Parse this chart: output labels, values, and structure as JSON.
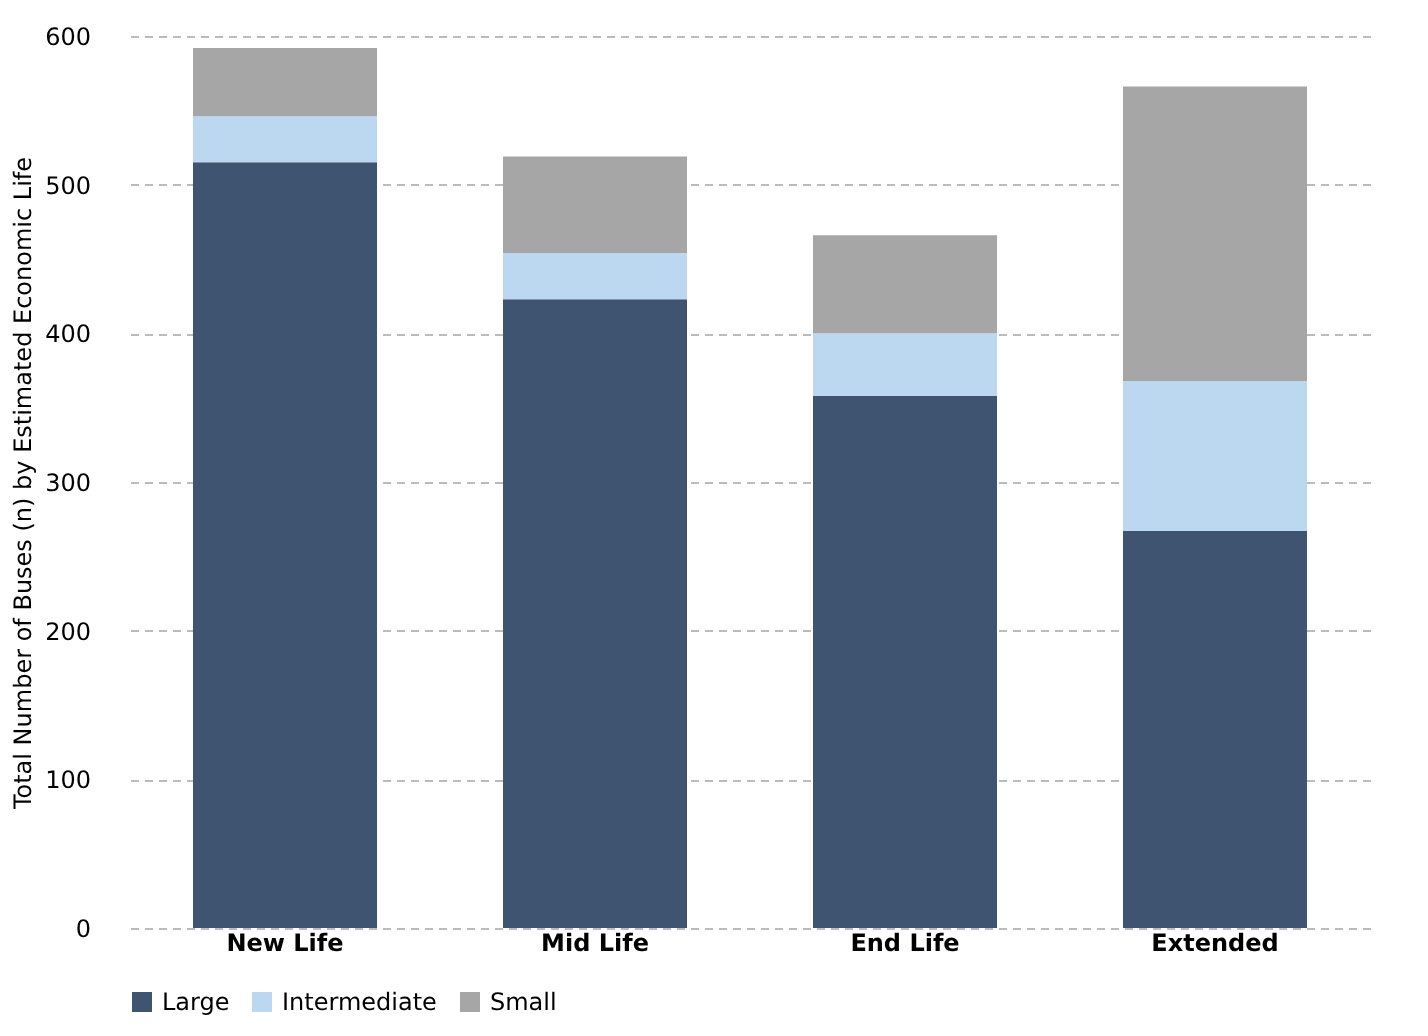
{
  "chart_data": {
    "type": "bar",
    "stacked": true,
    "ylabel": "Total Number of Buses (n) by Estimated Economic Life",
    "categories": [
      "New Life",
      "Mid Life",
      "End Life",
      "Extended"
    ],
    "series": [
      {
        "name": "Large",
        "color": "#3f5470",
        "values": [
          515,
          423,
          358,
          267
        ]
      },
      {
        "name": "Intermediate",
        "color": "#bcd7f0",
        "values": [
          31,
          31,
          42,
          101
        ]
      },
      {
        "name": "Small",
        "color": "#a6a6a6",
        "values": [
          46,
          65,
          66,
          198
        ]
      }
    ],
    "ylim": [
      0,
      600
    ],
    "yticks": [
      0,
      100,
      200,
      300,
      400,
      500,
      600
    ],
    "grid": "y",
    "legend": "bottom"
  }
}
